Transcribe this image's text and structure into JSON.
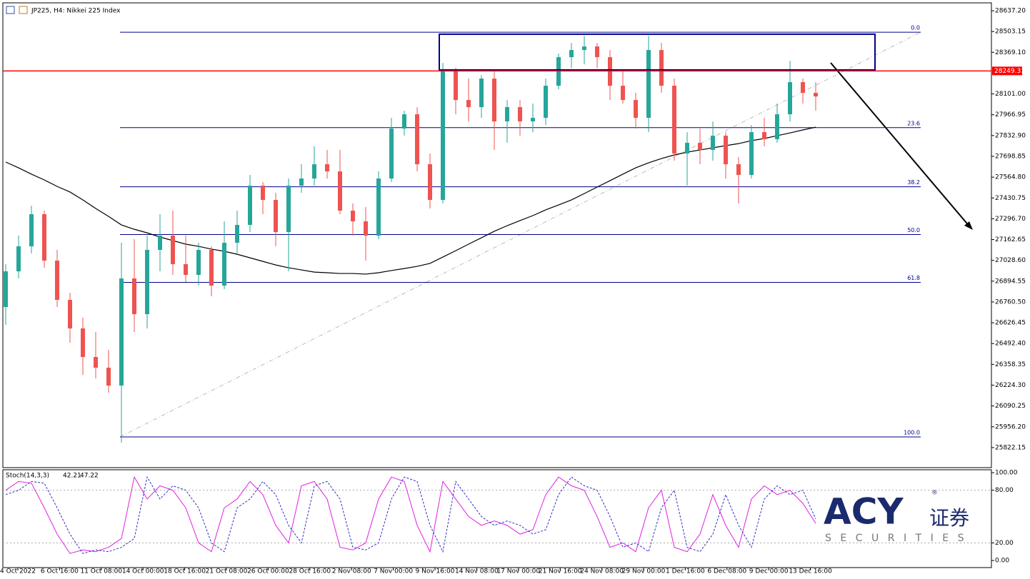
{
  "chart_data": [
    {
      "type": "candlestick",
      "title": "JP225, H4:  Nikkei 225 Index",
      "x_labels": [
        "4 Oct 2022",
        "6 Oct 16:00",
        "11 Oct 08:00",
        "14 Oct 00:00",
        "18 Oct 16:00",
        "21 Oct 08:00",
        "26 Oct 00:00",
        "28 Oct 16:00",
        "2 Nov 08:00",
        "7 Nov 00:00",
        "9 Nov 16:00",
        "14 Nov 08:00",
        "17 Nov 00:00",
        "21 Nov 16:00",
        "24 Nov 08:00",
        "29 Nov 00:00",
        "1 Dec 16:00",
        "6 Dec 08:00",
        "9 Dec 00:00",
        "13 Dec 16:00"
      ],
      "open": [
        26728,
        26958,
        27119,
        27326,
        27027,
        26774,
        26590,
        26406,
        26337,
        26222,
        26912,
        26682,
        27096,
        27188,
        27004,
        26935,
        27096,
        26866,
        27142,
        27257,
        27510,
        27418,
        27211,
        27510,
        27556,
        27648,
        27602,
        27349,
        27280,
        27188,
        27556,
        27878,
        27970,
        27648,
        27418,
        28246,
        28062,
        28016,
        28200,
        27924,
        28016,
        27924,
        27947,
        28154,
        28338,
        28384,
        28407,
        28338,
        28154,
        28062,
        27947,
        28384,
        28154,
        27717,
        27786,
        27740,
        27832,
        27648,
        27579,
        27855,
        27809,
        27970,
        28177,
        28108
      ],
      "high": [
        27004,
        27188,
        27381,
        27349,
        27096,
        26820,
        26659,
        26567,
        26452,
        27142,
        27165,
        27188,
        27326,
        27349,
        27188,
        27142,
        27119,
        27280,
        27349,
        27579,
        27533,
        27464,
        27556,
        27648,
        27763,
        27740,
        27740,
        27395,
        27372,
        27602,
        27947,
        27993,
        28016,
        27717,
        28301,
        28269,
        28200,
        28223,
        28246,
        28062,
        28062,
        28039,
        28200,
        28361,
        28430,
        28476,
        28430,
        28384,
        28246,
        28108,
        28476,
        28430,
        28200,
        27855,
        27878,
        27924,
        27855,
        27694,
        27901,
        27947,
        28039,
        28315,
        28200,
        28177
      ],
      "low": [
        26613,
        26912,
        27073,
        26981,
        26728,
        26498,
        26291,
        26268,
        26176,
        25854,
        26567,
        26590,
        26958,
        26935,
        26889,
        26866,
        26797,
        26843,
        27073,
        27211,
        27326,
        27119,
        26958,
        27464,
        27510,
        27556,
        27326,
        27188,
        27027,
        27165,
        27533,
        27832,
        27602,
        27363,
        27395,
        27970,
        27924,
        27947,
        27740,
        27786,
        27832,
        27855,
        27901,
        28131,
        28269,
        28292,
        28269,
        28062,
        28039,
        27878,
        27855,
        28108,
        27671,
        27510,
        27648,
        27671,
        27556,
        27395,
        27556,
        27763,
        27786,
        27924,
        28039,
        27993
      ],
      "close": [
        26958,
        27119,
        27326,
        27027,
        26774,
        26590,
        26406,
        26337,
        26222,
        26912,
        26682,
        27096,
        27188,
        27004,
        26935,
        27096,
        26866,
        27142,
        27257,
        27510,
        27418,
        27211,
        27510,
        27556,
        27648,
        27602,
        27349,
        27280,
        27188,
        27556,
        27878,
        27970,
        27648,
        27418,
        28246,
        28062,
        28016,
        28200,
        27924,
        28016,
        27924,
        27947,
        28154,
        28338,
        28384,
        28407,
        28338,
        28154,
        28062,
        27947,
        28384,
        28154,
        27717,
        27786,
        27740,
        27832,
        27648,
        27579,
        27855,
        27809,
        27970,
        28177,
        28108,
        28085
      ],
      "ma": [
        27662,
        27625,
        27584,
        27547,
        27505,
        27469,
        27418,
        27363,
        27312,
        27257,
        27229,
        27206,
        27179,
        27156,
        27133,
        27119,
        27101,
        27087,
        27068,
        27045,
        27022,
        26999,
        26981,
        26967,
        26953,
        26949,
        26944,
        26944,
        26940,
        26949,
        26963,
        26976,
        26990,
        27009,
        27050,
        27091,
        27133,
        27174,
        27216,
        27252,
        27285,
        27317,
        27354,
        27386,
        27418,
        27459,
        27501,
        27542,
        27584,
        27625,
        27657,
        27685,
        27708,
        27726,
        27740,
        27754,
        27768,
        27781,
        27800,
        27814,
        27832,
        27850,
        27869,
        27887
      ],
      "up_color": "#26a69a",
      "down_color": "#ef5350",
      "ma_color": "#000000",
      "ylim": [
        25693,
        28688
      ],
      "yticks": [
        {
          "value": 28637.2,
          "label": "28637.20"
        },
        28503.15,
        {
          "value": 28369.1,
          "label": "28369.10"
        },
        {
          "value": 28101,
          "label": "28101.00"
        },
        27966.95,
        {
          "value": 27832.9,
          "label": "27832.90"
        },
        27698.85,
        {
          "value": 27564.8,
          "label": "27564.80"
        },
        27430.75,
        {
          "value": 27296.7,
          "label": "27296.70"
        },
        27162.65,
        {
          "value": 27028.6,
          "label": "27028.60"
        },
        26894.55,
        {
          "value": 26760.5,
          "label": "26760.50"
        },
        26626.45,
        {
          "value": 26492.4,
          "label": "26492.40"
        },
        26358.35,
        {
          "value": 26224.3,
          "label": "26224.30"
        },
        26090.25,
        {
          "value": 25956.2,
          "label": "25956.20"
        },
        25822.15
      ],
      "last_price": 28249.31,
      "last_price_color": "#ff0000",
      "fib": {
        "color": "#00008b",
        "levels": [
          {
            "label": "0.0",
            "value": 28499
          },
          {
            "label": "23.6",
            "value": 27884
          },
          {
            "label": "38.2",
            "value": 27503
          },
          {
            "label": "50.0",
            "value": 27195
          },
          {
            "label": "61.8",
            "value": 26887
          },
          {
            "label": "100.0",
            "value": 25891
          }
        ]
      },
      "rectangle": {
        "top": 28486,
        "bottom": 28256,
        "color": "#00008b"
      }
    },
    {
      "type": "line",
      "indicator": "Stoch(14,3,3)",
      "ylim": [
        -8.1,
        103.3
      ],
      "yticks": [
        {
          "value": 100,
          "label": "100.00"
        },
        {
          "value": 80,
          "label": "80.00"
        },
        {
          "value": 20,
          "label": "20.00"
        },
        {
          "value": 0,
          "label": "0.00"
        }
      ],
      "series": [
        {
          "color": "#e020e0",
          "dash": false,
          "values": [
            80,
            90,
            88,
            60,
            30,
            8,
            12,
            10,
            15,
            25,
            95,
            70,
            85,
            80,
            60,
            20,
            10,
            60,
            70,
            90,
            75,
            40,
            20,
            85,
            90,
            70,
            15,
            12,
            20,
            70,
            95,
            90,
            40,
            10,
            90,
            70,
            50,
            40,
            45,
            40,
            30,
            35,
            75,
            95,
            85,
            80,
            50,
            15,
            20,
            10,
            60,
            80,
            15,
            10,
            30,
            75,
            40,
            15,
            70,
            85,
            75,
            80,
            65,
            42.21
          ]
        },
        {
          "color": "#3030c0",
          "dash": true,
          "values": [
            75,
            80,
            90,
            88,
            60,
            30,
            8,
            12,
            10,
            15,
            25,
            95,
            70,
            85,
            80,
            60,
            20,
            10,
            60,
            70,
            90,
            75,
            40,
            20,
            85,
            90,
            70,
            15,
            12,
            20,
            70,
            95,
            90,
            40,
            10,
            90,
            70,
            50,
            40,
            45,
            40,
            30,
            35,
            75,
            95,
            85,
            80,
            50,
            15,
            20,
            10,
            60,
            80,
            15,
            10,
            30,
            75,
            40,
            15,
            70,
            85,
            75,
            80,
            47.22
          ]
        }
      ]
    }
  ],
  "logo": {
    "brand": "ACY",
    "suffix": "证券",
    "tagline": "SECURITIES",
    "mark": "®"
  }
}
